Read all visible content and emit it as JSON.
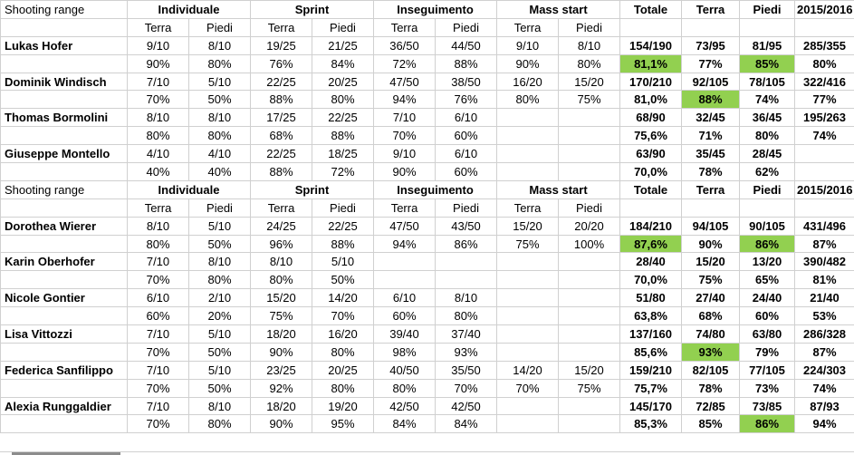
{
  "colors": {
    "highlight_green": "#92d050",
    "gridline": "#d0d0d0"
  },
  "header": {
    "corner": "Shooting range",
    "groups": [
      "Individuale",
      "Sprint",
      "Inseguimento",
      "Mass start"
    ],
    "stances": [
      "Terra",
      "Piedi"
    ],
    "summary": [
      "Totale",
      "Terra",
      "Piedi",
      "2015/2016"
    ]
  },
  "sections": [
    {
      "athletes": [
        {
          "name": "Lukas Hofer",
          "fractions": [
            "9/10",
            "8/10",
            "19/25",
            "21/25",
            "36/50",
            "44/50",
            "9/10",
            "8/10",
            "154/190",
            "73/95",
            "81/95",
            "285/355"
          ],
          "percents": [
            "90%",
            "80%",
            "76%",
            "84%",
            "72%",
            "88%",
            "90%",
            "80%",
            "81,1%",
            "77%",
            "85%",
            "80%"
          ],
          "green": [
            8,
            10
          ]
        },
        {
          "name": "Dominik Windisch",
          "fractions": [
            "7/10",
            "5/10",
            "22/25",
            "20/25",
            "47/50",
            "38/50",
            "16/20",
            "15/20",
            "170/210",
            "92/105",
            "78/105",
            "322/416"
          ],
          "percents": [
            "70%",
            "50%",
            "88%",
            "80%",
            "94%",
            "76%",
            "80%",
            "75%",
            "81,0%",
            "88%",
            "74%",
            "77%"
          ],
          "green": [
            9
          ]
        },
        {
          "name": "Thomas Bormolini",
          "fractions": [
            "8/10",
            "8/10",
            "17/25",
            "22/25",
            "7/10",
            "6/10",
            "",
            "",
            "68/90",
            "32/45",
            "36/45",
            "195/263"
          ],
          "percents": [
            "80%",
            "80%",
            "68%",
            "88%",
            "70%",
            "60%",
            "",
            "",
            "75,6%",
            "71%",
            "80%",
            "74%"
          ],
          "green": []
        },
        {
          "name": "Giuseppe Montello",
          "fractions": [
            "4/10",
            "4/10",
            "22/25",
            "18/25",
            "9/10",
            "6/10",
            "",
            "",
            "63/90",
            "35/45",
            "28/45",
            ""
          ],
          "percents": [
            "40%",
            "40%",
            "88%",
            "72%",
            "90%",
            "60%",
            "",
            "",
            "70,0%",
            "78%",
            "62%",
            ""
          ],
          "green": []
        }
      ]
    },
    {
      "athletes": [
        {
          "name": "Dorothea Wierer",
          "fractions": [
            "8/10",
            "5/10",
            "24/25",
            "22/25",
            "47/50",
            "43/50",
            "15/20",
            "20/20",
            "184/210",
            "94/105",
            "90/105",
            "431/496"
          ],
          "percents": [
            "80%",
            "50%",
            "96%",
            "88%",
            "94%",
            "86%",
            "75%",
            "100%",
            "87,6%",
            "90%",
            "86%",
            "87%"
          ],
          "green": [
            8,
            10
          ]
        },
        {
          "name": "Karin Oberhofer",
          "fractions": [
            "7/10",
            "8/10",
            "8/10",
            "5/10",
            "",
            "",
            "",
            "",
            "28/40",
            "15/20",
            "13/20",
            "390/482"
          ],
          "percents": [
            "70%",
            "80%",
            "80%",
            "50%",
            "",
            "",
            "",
            "",
            "70,0%",
            "75%",
            "65%",
            "81%"
          ],
          "green": []
        },
        {
          "name": "Nicole Gontier",
          "fractions": [
            "6/10",
            "2/10",
            "15/20",
            "14/20",
            "6/10",
            "8/10",
            "",
            "",
            "51/80",
            "27/40",
            "24/40",
            "21/40"
          ],
          "percents": [
            "60%",
            "20%",
            "75%",
            "70%",
            "60%",
            "80%",
            "",
            "",
            "63,8%",
            "68%",
            "60%",
            "53%"
          ],
          "green": []
        },
        {
          "name": "Lisa Vittozzi",
          "fractions": [
            "7/10",
            "5/10",
            "18/20",
            "16/20",
            "39/40",
            "37/40",
            "",
            "",
            "137/160",
            "74/80",
            "63/80",
            "286/328"
          ],
          "percents": [
            "70%",
            "50%",
            "90%",
            "80%",
            "98%",
            "93%",
            "",
            "",
            "85,6%",
            "93%",
            "79%",
            "87%"
          ],
          "green": [
            9
          ]
        },
        {
          "name": "Federica Sanfilippo",
          "fractions": [
            "7/10",
            "5/10",
            "23/25",
            "20/25",
            "40/50",
            "35/50",
            "14/20",
            "15/20",
            "159/210",
            "82/105",
            "77/105",
            "224/303"
          ],
          "percents": [
            "70%",
            "50%",
            "92%",
            "80%",
            "80%",
            "70%",
            "70%",
            "75%",
            "75,7%",
            "78%",
            "73%",
            "74%"
          ],
          "green": []
        },
        {
          "name": "Alexia Runggaldier",
          "fractions": [
            "7/10",
            "8/10",
            "18/20",
            "19/20",
            "42/50",
            "42/50",
            "",
            "",
            "145/170",
            "72/85",
            "73/85",
            "87/93"
          ],
          "percents": [
            "70%",
            "80%",
            "90%",
            "95%",
            "84%",
            "84%",
            "",
            "",
            "85,3%",
            "85%",
            "86%",
            "94%"
          ],
          "green": [
            10
          ]
        }
      ]
    }
  ]
}
